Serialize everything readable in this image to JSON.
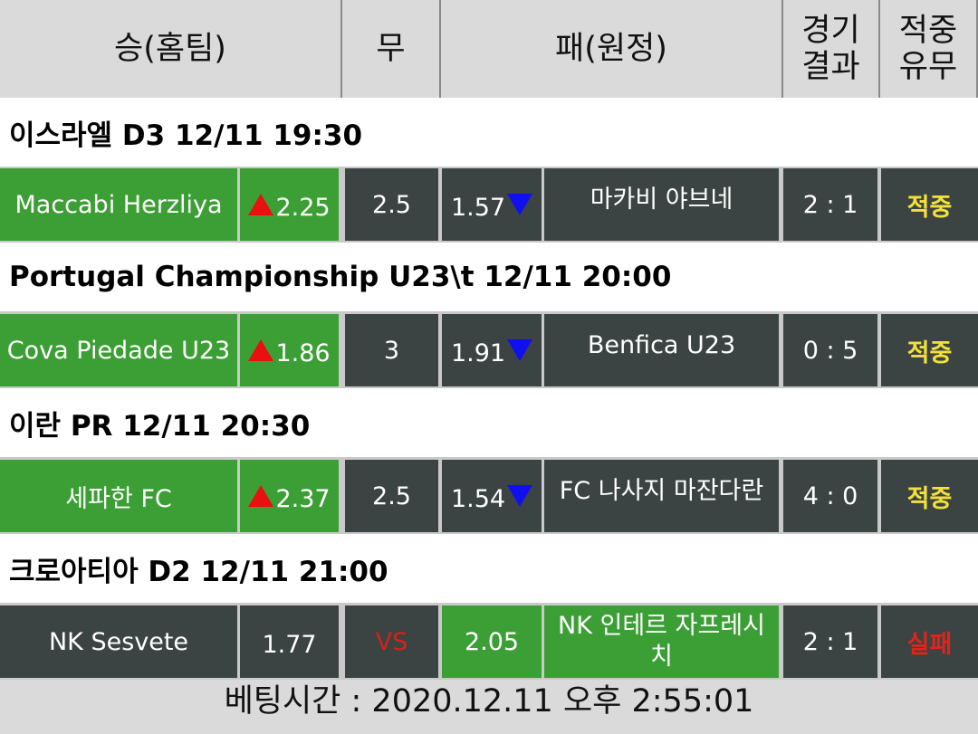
{
  "header": {
    "home": "승(홈팀)",
    "draw": "무",
    "away": "패(원정)",
    "result": "경기 결과",
    "hit": "적중 유무"
  },
  "matches": [
    {
      "league": "이스라엘 D3 12/11 19:30",
      "home": "Maccabi Herzliya",
      "home_odds": 2.25,
      "draw": 2.5,
      "away_odds": 1.57,
      "away": "마카비 야브네",
      "score": "2 : 1",
      "outcome": "적중"
    },
    {
      "league": "Portugal Championship U23\\t 12/11 20:00",
      "home": "Cova Piedade U23",
      "home_odds": 1.86,
      "draw": 3,
      "away_odds": 1.91,
      "away": "Benfica U23",
      "score": "0 : 5",
      "outcome": "적중"
    },
    {
      "league": "이란 PR 12/11 20:30",
      "home": "세파한 FC",
      "home_odds": 2.37,
      "draw": 2.5,
      "away_odds": 1.54,
      "away": "FC 나사지 마잔다란",
      "score": "4 : 0",
      "outcome": "적중"
    },
    {
      "league": "크로아티아 D2 12/11 21:00",
      "home": "NK Sesvete",
      "home_odds": 1.77,
      "draw": "VS",
      "away_odds": 2.05,
      "away": "NK 인테르 자프레시치",
      "score": "2 : 1",
      "outcome": "실패"
    }
  ],
  "footer": "베팅시간 : 2020.12.11 오후 2:55:01"
}
